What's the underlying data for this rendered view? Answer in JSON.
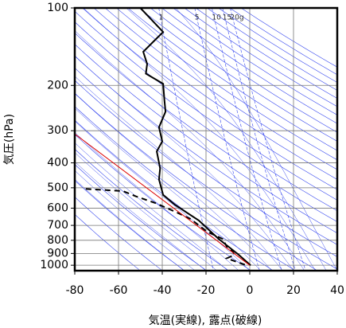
{
  "chart_data": {
    "type": "sounding",
    "xlabel": "気温(実線), 露点(破線)",
    "ylabel": "気圧(hPa)",
    "xlim": [
      -80,
      40
    ],
    "xticks": [
      -80,
      -60,
      -40,
      -20,
      0,
      20,
      40
    ],
    "ylim": [
      1050,
      100
    ],
    "yticks": [
      100,
      200,
      300,
      400,
      500,
      600,
      700,
      800,
      900,
      1000
    ],
    "log_y": true,
    "grid": true,
    "mixing_ratio_lines": [
      {
        "value": 1,
        "label": "1"
      },
      {
        "value": 5,
        "label": "5"
      },
      {
        "value": 10,
        "label": "10"
      },
      {
        "value": 15,
        "label": "15"
      },
      {
        "value": 20,
        "label": "20g"
      }
    ],
    "series": [
      {
        "color": "#000000",
        "style": "solid",
        "x": [
          -50,
          -39.6,
          -44,
          -48.7,
          -46.9,
          -47.5,
          -39.6,
          -39,
          -38.5,
          -41.5,
          -40,
          -42.5,
          -41,
          -41.5,
          -39.6,
          -34.2,
          -23.3,
          -14.2,
          -5.1,
          0.4
        ],
        "y": [
          100,
          124,
          135,
          148,
          165,
          180,
          197,
          230,
          253,
          291,
          330,
          361,
          420,
          464,
          533,
          582,
          670,
          790,
          910,
          1000
        ]
      },
      {
        "color": "#000000",
        "style": "dashed",
        "x": [
          -75,
          -58,
          -52,
          -43,
          -34,
          -27,
          -19.6,
          -12.4,
          -10.5,
          -8,
          -6.9,
          -10.5,
          -1.5
        ],
        "y": [
          505,
          515,
          540,
          574,
          620,
          661,
          740,
          790,
          846,
          880,
          910,
          940,
          1000
        ]
      },
      {
        "color": "#dd0000",
        "style": "thin",
        "x": [
          -80,
          0
        ],
        "y": [
          309,
          1000
        ]
      }
    ]
  }
}
